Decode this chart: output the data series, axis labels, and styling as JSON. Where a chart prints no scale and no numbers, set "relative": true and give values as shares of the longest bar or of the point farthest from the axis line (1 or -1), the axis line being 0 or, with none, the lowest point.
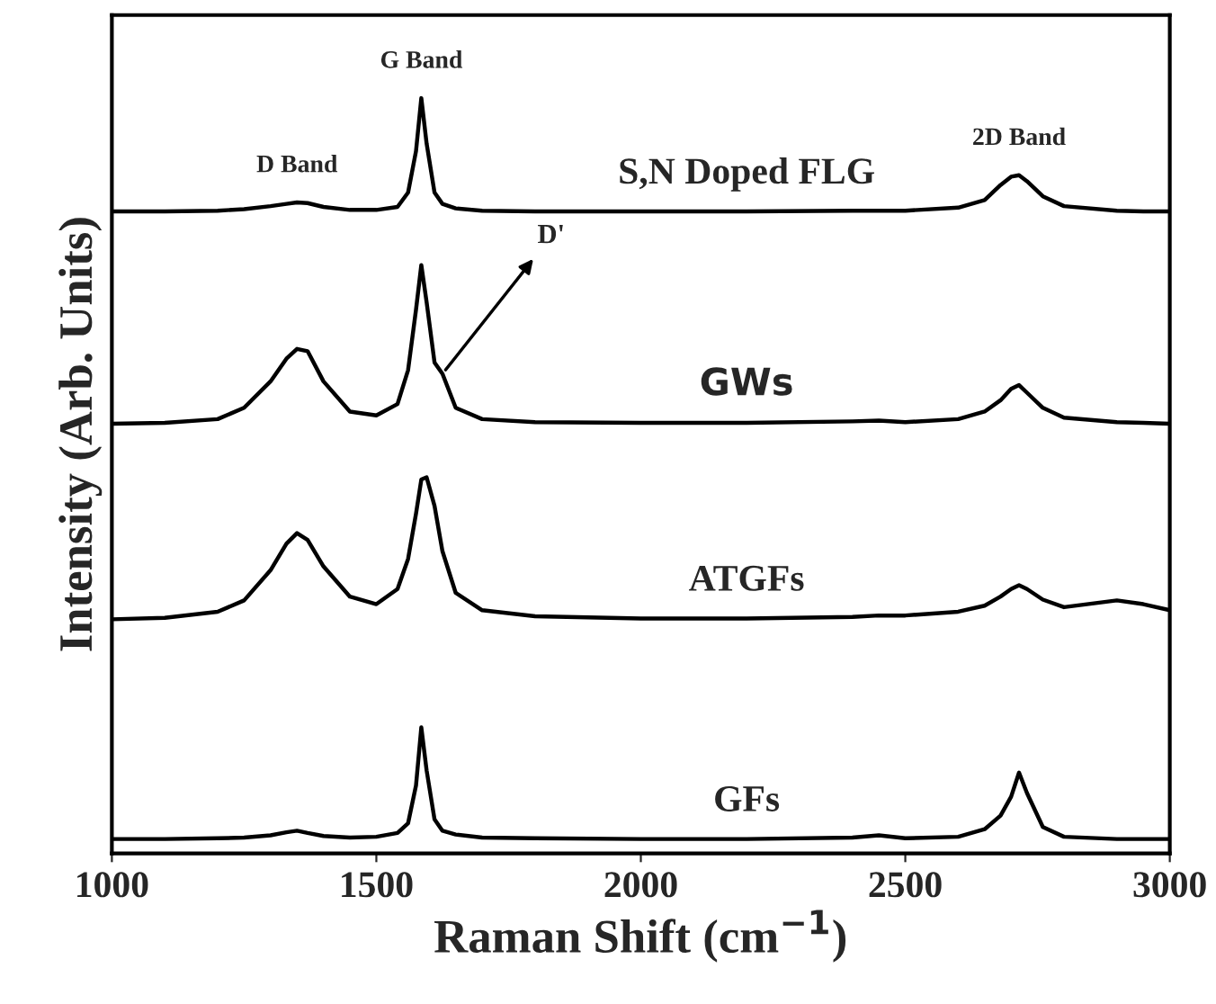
{
  "chart_data": {
    "type": "line",
    "relative": true,
    "xlabel": "Raman Shift (cm$^{−1}$)",
    "ylabel": "Intensity (Arb. Units)",
    "x": [
      1000,
      1100,
      1200,
      1250,
      1300,
      1330,
      1350,
      1370,
      1400,
      1450,
      1500,
      1540,
      1560,
      1575,
      1585,
      1595,
      1610,
      1625,
      1650,
      1700,
      1800,
      2000,
      2200,
      2400,
      2450,
      2500,
      2600,
      2650,
      2680,
      2700,
      2715,
      2730,
      2760,
      2800,
      2900,
      2950,
      3000
    ],
    "xlim": [
      1000,
      3000
    ],
    "xticks": [
      1000,
      1500,
      2000,
      2500,
      3000
    ],
    "tick_labels": "x",
    "grid": false,
    "legend": false,
    "series": [
      {
        "name": "S,N Doped FLG",
        "color": "#000000",
        "values": [
          0.85,
          0.85,
          0.851,
          0.853,
          0.857,
          0.86,
          0.862,
          0.861,
          0.856,
          0.852,
          0.852,
          0.856,
          0.875,
          0.93,
          1.0,
          0.94,
          0.875,
          0.86,
          0.854,
          0.851,
          0.85,
          0.85,
          0.85,
          0.851,
          0.851,
          0.851,
          0.855,
          0.865,
          0.885,
          0.896,
          0.898,
          0.89,
          0.87,
          0.857,
          0.851,
          0.85,
          0.85
        ]
      },
      {
        "name": "GWs",
        "color": "#000000",
        "values": [
          0.569,
          0.57,
          0.575,
          0.59,
          0.625,
          0.655,
          0.668,
          0.665,
          0.625,
          0.585,
          0.58,
          0.595,
          0.64,
          0.72,
          0.779,
          0.73,
          0.65,
          0.635,
          0.59,
          0.575,
          0.571,
          0.57,
          0.57,
          0.572,
          0.573,
          0.571,
          0.575,
          0.585,
          0.6,
          0.615,
          0.62,
          0.61,
          0.59,
          0.577,
          0.571,
          0.57,
          0.569
        ]
      },
      {
        "name": "ATGFs",
        "color": "#000000",
        "values": [
          0.31,
          0.312,
          0.32,
          0.335,
          0.375,
          0.41,
          0.424,
          0.415,
          0.38,
          0.34,
          0.33,
          0.35,
          0.39,
          0.45,
          0.495,
          0.498,
          0.46,
          0.4,
          0.345,
          0.322,
          0.314,
          0.311,
          0.311,
          0.313,
          0.315,
          0.315,
          0.32,
          0.328,
          0.34,
          0.35,
          0.355,
          0.35,
          0.336,
          0.326,
          0.335,
          0.33,
          0.322
        ]
      },
      {
        "name": "GFs",
        "color": "#000000",
        "values": [
          0.019,
          0.019,
          0.02,
          0.021,
          0.024,
          0.028,
          0.03,
          0.027,
          0.023,
          0.021,
          0.022,
          0.027,
          0.04,
          0.09,
          0.167,
          0.11,
          0.045,
          0.03,
          0.025,
          0.021,
          0.02,
          0.019,
          0.019,
          0.021,
          0.024,
          0.02,
          0.022,
          0.032,
          0.05,
          0.075,
          0.107,
          0.08,
          0.035,
          0.022,
          0.019,
          0.019,
          0.019
        ]
      }
    ],
    "annotations": [
      {
        "text": "D Band",
        "x": 1350,
        "y": 0.862
      },
      {
        "text": "G Band",
        "x": 1585,
        "y": 1.0
      },
      {
        "text": "2D Band",
        "x": 2715,
        "y": 0.898
      },
      {
        "text": "D'",
        "x": 1625,
        "y": 0.635
      }
    ]
  }
}
